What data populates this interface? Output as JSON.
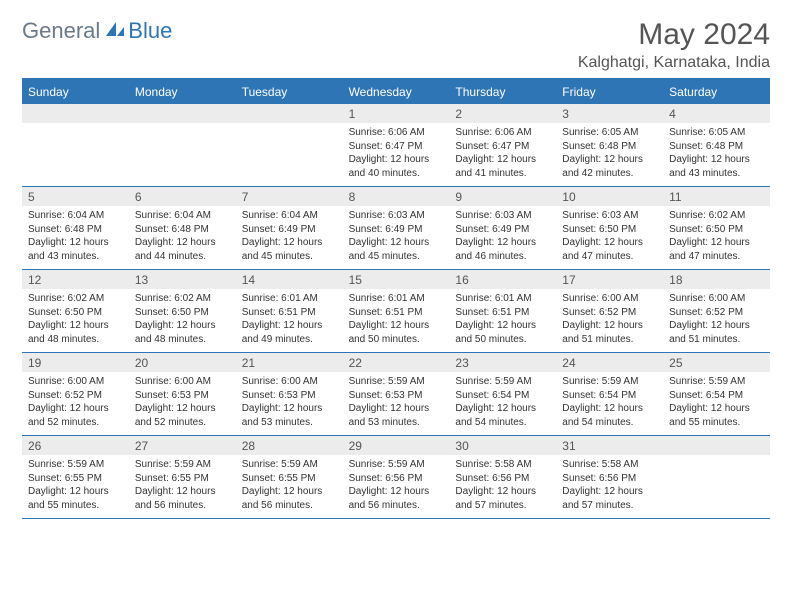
{
  "logo": {
    "general": "General",
    "blue": "Blue"
  },
  "title": "May 2024",
  "location": "Kalghatgi, Karnataka, India",
  "colors": {
    "brand_blue": "#2e75b6",
    "logo_gray": "#6b7a8a",
    "daynum_bg": "#ececec",
    "text": "#333333",
    "title_text": "#555555"
  },
  "weekdays": [
    "Sunday",
    "Monday",
    "Tuesday",
    "Wednesday",
    "Thursday",
    "Friday",
    "Saturday"
  ],
  "weeks": [
    [
      null,
      null,
      null,
      {
        "n": "1",
        "sr": "6:06 AM",
        "ss": "6:47 PM",
        "dl": "12 hours and 40 minutes."
      },
      {
        "n": "2",
        "sr": "6:06 AM",
        "ss": "6:47 PM",
        "dl": "12 hours and 41 minutes."
      },
      {
        "n": "3",
        "sr": "6:05 AM",
        "ss": "6:48 PM",
        "dl": "12 hours and 42 minutes."
      },
      {
        "n": "4",
        "sr": "6:05 AM",
        "ss": "6:48 PM",
        "dl": "12 hours and 43 minutes."
      }
    ],
    [
      {
        "n": "5",
        "sr": "6:04 AM",
        "ss": "6:48 PM",
        "dl": "12 hours and 43 minutes."
      },
      {
        "n": "6",
        "sr": "6:04 AM",
        "ss": "6:48 PM",
        "dl": "12 hours and 44 minutes."
      },
      {
        "n": "7",
        "sr": "6:04 AM",
        "ss": "6:49 PM",
        "dl": "12 hours and 45 minutes."
      },
      {
        "n": "8",
        "sr": "6:03 AM",
        "ss": "6:49 PM",
        "dl": "12 hours and 45 minutes."
      },
      {
        "n": "9",
        "sr": "6:03 AM",
        "ss": "6:49 PM",
        "dl": "12 hours and 46 minutes."
      },
      {
        "n": "10",
        "sr": "6:03 AM",
        "ss": "6:50 PM",
        "dl": "12 hours and 47 minutes."
      },
      {
        "n": "11",
        "sr": "6:02 AM",
        "ss": "6:50 PM",
        "dl": "12 hours and 47 minutes."
      }
    ],
    [
      {
        "n": "12",
        "sr": "6:02 AM",
        "ss": "6:50 PM",
        "dl": "12 hours and 48 minutes."
      },
      {
        "n": "13",
        "sr": "6:02 AM",
        "ss": "6:50 PM",
        "dl": "12 hours and 48 minutes."
      },
      {
        "n": "14",
        "sr": "6:01 AM",
        "ss": "6:51 PM",
        "dl": "12 hours and 49 minutes."
      },
      {
        "n": "15",
        "sr": "6:01 AM",
        "ss": "6:51 PM",
        "dl": "12 hours and 50 minutes."
      },
      {
        "n": "16",
        "sr": "6:01 AM",
        "ss": "6:51 PM",
        "dl": "12 hours and 50 minutes."
      },
      {
        "n": "17",
        "sr": "6:00 AM",
        "ss": "6:52 PM",
        "dl": "12 hours and 51 minutes."
      },
      {
        "n": "18",
        "sr": "6:00 AM",
        "ss": "6:52 PM",
        "dl": "12 hours and 51 minutes."
      }
    ],
    [
      {
        "n": "19",
        "sr": "6:00 AM",
        "ss": "6:52 PM",
        "dl": "12 hours and 52 minutes."
      },
      {
        "n": "20",
        "sr": "6:00 AM",
        "ss": "6:53 PM",
        "dl": "12 hours and 52 minutes."
      },
      {
        "n": "21",
        "sr": "6:00 AM",
        "ss": "6:53 PM",
        "dl": "12 hours and 53 minutes."
      },
      {
        "n": "22",
        "sr": "5:59 AM",
        "ss": "6:53 PM",
        "dl": "12 hours and 53 minutes."
      },
      {
        "n": "23",
        "sr": "5:59 AM",
        "ss": "6:54 PM",
        "dl": "12 hours and 54 minutes."
      },
      {
        "n": "24",
        "sr": "5:59 AM",
        "ss": "6:54 PM",
        "dl": "12 hours and 54 minutes."
      },
      {
        "n": "25",
        "sr": "5:59 AM",
        "ss": "6:54 PM",
        "dl": "12 hours and 55 minutes."
      }
    ],
    [
      {
        "n": "26",
        "sr": "5:59 AM",
        "ss": "6:55 PM",
        "dl": "12 hours and 55 minutes."
      },
      {
        "n": "27",
        "sr": "5:59 AM",
        "ss": "6:55 PM",
        "dl": "12 hours and 56 minutes."
      },
      {
        "n": "28",
        "sr": "5:59 AM",
        "ss": "6:55 PM",
        "dl": "12 hours and 56 minutes."
      },
      {
        "n": "29",
        "sr": "5:59 AM",
        "ss": "6:56 PM",
        "dl": "12 hours and 56 minutes."
      },
      {
        "n": "30",
        "sr": "5:58 AM",
        "ss": "6:56 PM",
        "dl": "12 hours and 57 minutes."
      },
      {
        "n": "31",
        "sr": "5:58 AM",
        "ss": "6:56 PM",
        "dl": "12 hours and 57 minutes."
      },
      null
    ]
  ],
  "labels": {
    "sunrise": "Sunrise: ",
    "sunset": "Sunset: ",
    "daylight": "Daylight: "
  }
}
